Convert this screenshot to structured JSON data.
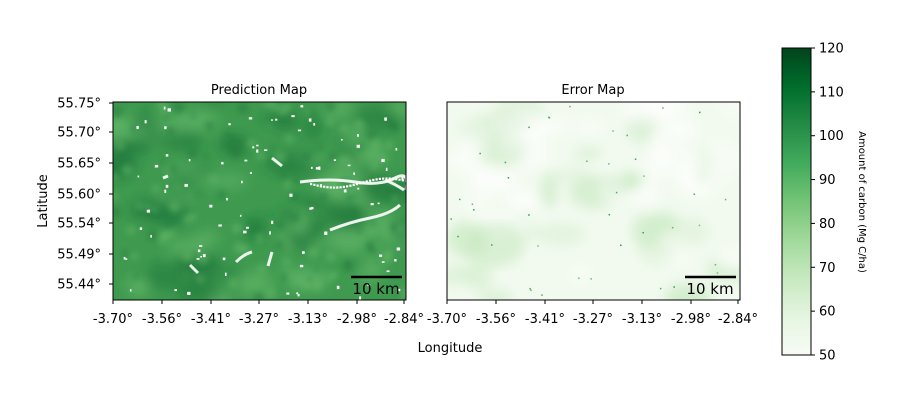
{
  "panels": [
    {
      "id": "prediction",
      "title": "Prediction Map",
      "scale_bar_label": "10 km",
      "show_y_ticks": true,
      "colors": {
        "base": "#3f9a4f",
        "light": "#63b76a",
        "dark": "#1f7a3c",
        "gap": "#ffffff"
      }
    },
    {
      "id": "error",
      "title": "Error Map",
      "scale_bar_label": "10 km",
      "show_y_ticks": false,
      "colors": {
        "base": "#f2faef",
        "light": "#ffffff",
        "dark": "#c6e8bf",
        "speck": "#2e9a45"
      }
    }
  ],
  "axes": {
    "xlabel": "Longitude",
    "ylabel": "Latitude",
    "x_ticks": [
      "-3.70°",
      "-3.56°",
      "-3.41°",
      "-3.27°",
      "-3.13°",
      "-2.98°",
      "-2.84°"
    ],
    "y_ticks": [
      "55.75°",
      "55.70°",
      "55.65°",
      "55.60°",
      "55.54°",
      "55.49°",
      "55.44°"
    ]
  },
  "colorbar": {
    "label": "Amount of carbon (Mg C/ha)",
    "min": 50,
    "max": 120,
    "ticks": [
      "120",
      "110",
      "100",
      "90",
      "80",
      "70",
      "60",
      "50"
    ],
    "cmap": [
      "#f7fcf5",
      "#e5f5e0",
      "#c7e9c0",
      "#a1d99b",
      "#74c476",
      "#41ab5d",
      "#238b45",
      "#006d2c",
      "#00441b"
    ]
  }
}
